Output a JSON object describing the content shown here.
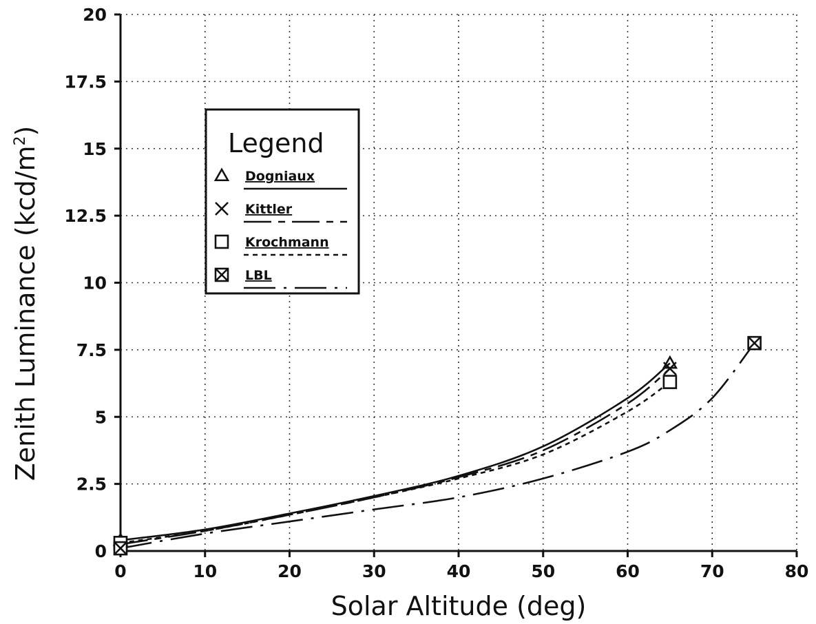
{
  "chart_data": {
    "type": "line",
    "title": "",
    "xlabel": "Solar Altitude (deg)",
    "ylabel": "Zenith Luminance (kcd/m",
    "ylabel_superscript": "2",
    "ylabel_suffix": ")",
    "xlim": [
      0,
      80
    ],
    "ylim": [
      0,
      20
    ],
    "x_ticks": [
      0,
      10,
      20,
      30,
      40,
      50,
      60,
      70,
      80
    ],
    "x_tick_labels": [
      "0",
      "10",
      "20",
      "30",
      "40",
      "50",
      "60",
      "70",
      "80"
    ],
    "y_ticks": [
      0,
      2.5,
      5,
      7.5,
      10,
      12.5,
      15,
      17.5,
      20
    ],
    "y_tick_labels": [
      "0",
      "2.5",
      "5",
      "7.5",
      "10",
      "12.5",
      "15",
      "17.5",
      "20"
    ],
    "grid": true,
    "legend": {
      "title": "Legend",
      "position": "upper-left",
      "entries": [
        "Dogniaux",
        "Kittler",
        "Krochmann",
        "LBL"
      ]
    },
    "series": [
      {
        "name": "Dogniaux",
        "marker": "triangle",
        "line_style": "solid",
        "x": [
          0,
          10,
          20,
          30,
          40,
          50,
          60,
          65
        ],
        "y": [
          0.4,
          0.8,
          1.4,
          2.05,
          2.8,
          3.9,
          5.7,
          7.0
        ],
        "marker_x": [
          0,
          65
        ],
        "marker_y": [
          0.4,
          7.0
        ]
      },
      {
        "name": "Kittler",
        "marker": "x",
        "line_style": "long-dash",
        "x": [
          0,
          10,
          20,
          30,
          40,
          50,
          60,
          65
        ],
        "y": [
          0.25,
          0.75,
          1.35,
          2.0,
          2.75,
          3.75,
          5.5,
          6.8
        ],
        "marker_x": [
          0,
          65
        ],
        "marker_y": [
          0.25,
          6.8
        ]
      },
      {
        "name": "Krochmann",
        "marker": "square",
        "line_style": "short-dash",
        "x": [
          0,
          10,
          20,
          30,
          40,
          50,
          60,
          65
        ],
        "y": [
          0.3,
          0.75,
          1.35,
          2.0,
          2.7,
          3.6,
          5.2,
          6.3
        ],
        "marker_x": [
          0,
          65
        ],
        "marker_y": [
          0.3,
          6.3
        ]
      },
      {
        "name": "LBL",
        "marker": "boxed-x",
        "line_style": "dash-dot",
        "x": [
          0,
          10,
          20,
          30,
          40,
          50,
          60,
          65,
          70,
          75
        ],
        "y": [
          0.1,
          0.65,
          1.1,
          1.55,
          2.0,
          2.7,
          3.7,
          4.5,
          5.7,
          7.75
        ],
        "marker_x": [
          0,
          75
        ],
        "marker_y": [
          0.1,
          7.75
        ]
      }
    ]
  }
}
